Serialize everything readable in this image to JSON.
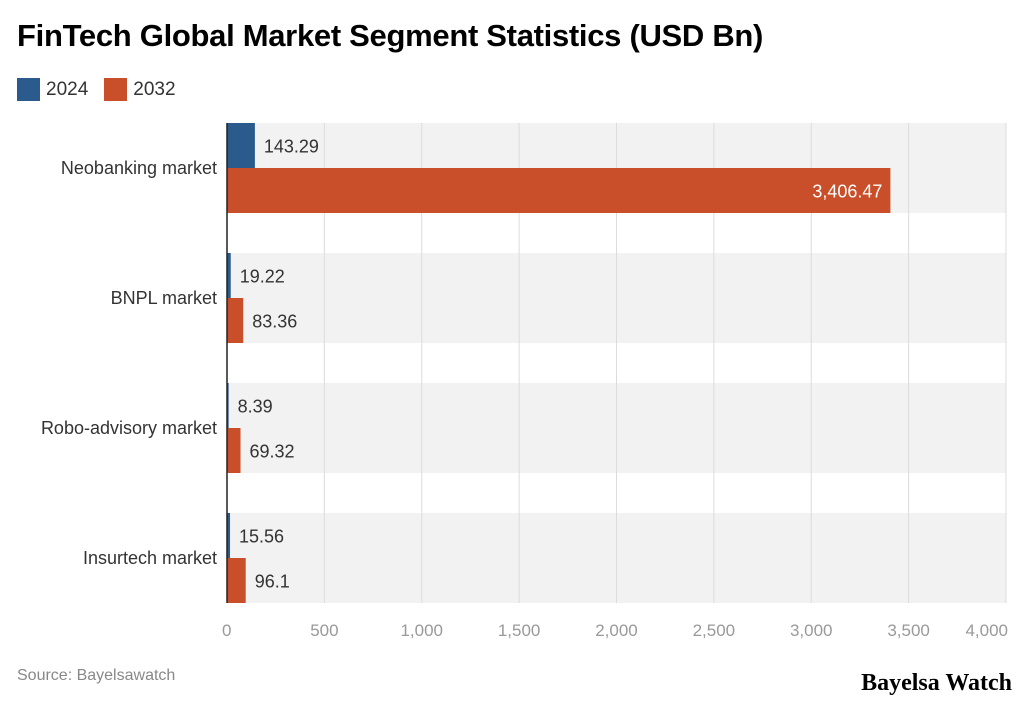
{
  "chart_data": {
    "type": "bar",
    "orientation": "horizontal",
    "title": "FinTech Global Market Segment Statistics (USD Bn)",
    "categories": [
      "Neobanking market",
      "BNPL market",
      "Robo-advisory market",
      "Insurtech market"
    ],
    "series": [
      {
        "name": "2024",
        "color": "#2a5b8c",
        "values": [
          143.29,
          19.22,
          8.39,
          15.56
        ],
        "labels": [
          "143.29",
          "19.22",
          "8.39",
          "15.56"
        ]
      },
      {
        "name": "2032",
        "color": "#c94f2a",
        "values": [
          3406.47,
          83.36,
          69.32,
          96.1
        ],
        "labels": [
          "3,406.47",
          "83.36",
          "69.32",
          "96.1"
        ]
      }
    ],
    "xlim": [
      0,
      4000
    ],
    "xticks": [
      0,
      500,
      1000,
      1500,
      2000,
      2500,
      3000,
      3500,
      4000
    ],
    "xtick_labels": [
      "0",
      "500",
      "1,000",
      "1,500",
      "2,000",
      "2,500",
      "3,000",
      "3,500",
      "4,000"
    ],
    "grid": true,
    "legend": "top-left",
    "source": "Source: Bayelsawatch",
    "brand": "Bayelsa Watch"
  }
}
